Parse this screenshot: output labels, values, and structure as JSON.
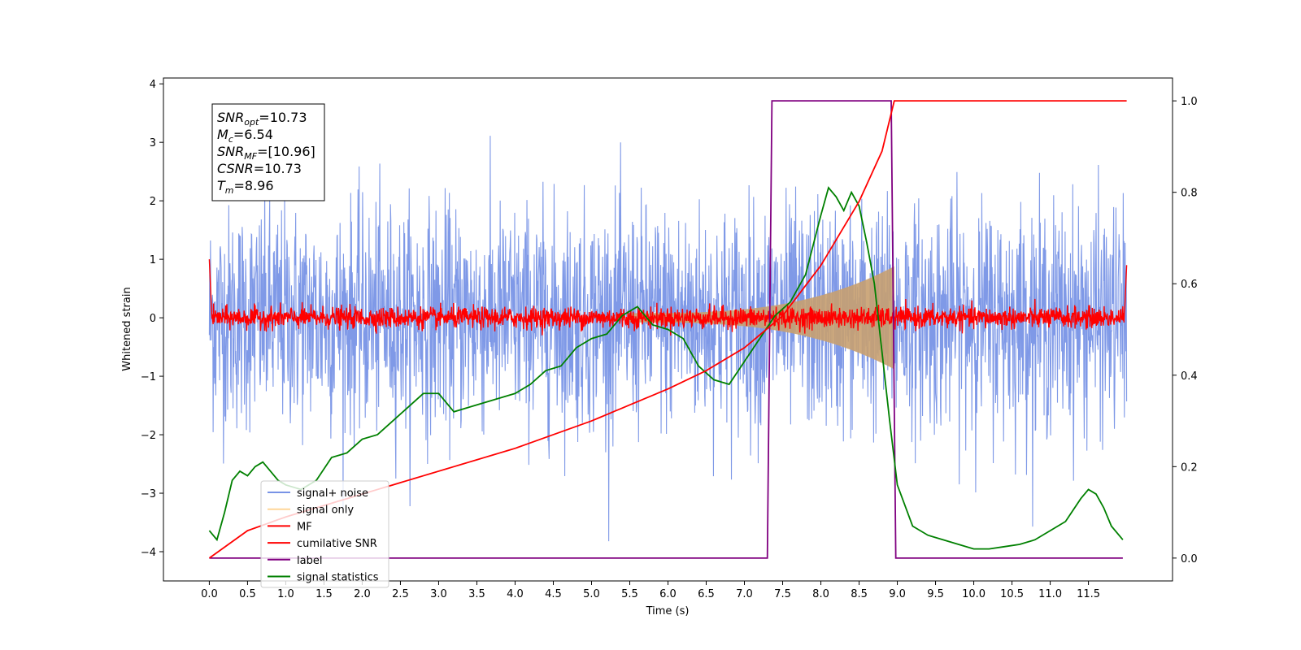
{
  "chart_data": {
    "type": "line",
    "xlabel": "Time (s)",
    "ylabel": "Whitened strain",
    "xlim": [
      -0.6,
      12.6
    ],
    "ylim": [
      -4.5,
      4.1
    ],
    "y2lim": [
      -0.05,
      1.05
    ],
    "x_ticks": [
      "0.0",
      "0.5",
      "1.0",
      "1.5",
      "2.0",
      "2.5",
      "3.0",
      "3.5",
      "4.0",
      "4.5",
      "5.0",
      "5.5",
      "6.0",
      "6.5",
      "7.0",
      "7.5",
      "8.0",
      "8.5",
      "9.0",
      "9.5",
      "10.0",
      "10.5",
      "11.0",
      "11.5"
    ],
    "y_ticks": [
      "4",
      "3",
      "2",
      "1",
      "0",
      "−1",
      "−2",
      "−3",
      "−4"
    ],
    "y2_ticks": [
      "1.0",
      "0.8",
      "0.6",
      "0.4",
      "0.2",
      "0.0"
    ],
    "annotation": {
      "lines": [
        {
          "sym": "SNR",
          "sub": "opt",
          "rest": "=10.73"
        },
        {
          "sym": "M",
          "sub": "c",
          "rest": "=6.54"
        },
        {
          "sym": "SNR",
          "sub": "MF",
          "rest": "=[10.96]"
        },
        {
          "sym": "CSNR",
          "sub": "",
          "rest": "=10.73"
        },
        {
          "sym": "T",
          "sub": "m",
          "rest": "=8.96"
        }
      ]
    },
    "legend": {
      "placement": "lower-left",
      "entries": [
        {
          "label": "signal+ noise",
          "color": "#7893e6"
        },
        {
          "label": "signal only",
          "color": "#ffd699"
        },
        {
          "label": "MF",
          "color": "#ff0000"
        },
        {
          "label": "cumilative SNR",
          "color": "#ff0000"
        },
        {
          "label": "label",
          "color": "#800080"
        },
        {
          "label": "signal statistics",
          "color": "#008000"
        }
      ]
    },
    "series": [
      {
        "name": "signal+ noise",
        "axis": "left",
        "color": "#7893e6",
        "description": "white noise band approx ±2.5 std with spikes to ±3.6 over t=0..12",
        "noise_std": 0.95,
        "t_range": [
          0,
          12
        ]
      },
      {
        "name": "signal only",
        "axis": "left",
        "color": "#c8a070",
        "chirp_start": 5.5,
        "chirp_end": 8.96,
        "peak_amplitude": 0.8
      },
      {
        "name": "MF",
        "axis": "left",
        "color": "#ff0000",
        "noise_std": 0.09,
        "t_range": [
          0,
          12
        ]
      },
      {
        "name": "cumilative SNR",
        "axis": "right",
        "color": "#ff0000",
        "x": [
          0.0,
          0.5,
          1.0,
          2.0,
          3.0,
          4.0,
          5.0,
          6.0,
          6.5,
          7.0,
          7.5,
          8.0,
          8.5,
          8.8,
          8.96,
          9.0,
          12.0
        ],
        "y": [
          0.0,
          0.06,
          0.09,
          0.14,
          0.19,
          0.24,
          0.3,
          0.37,
          0.41,
          0.46,
          0.53,
          0.64,
          0.78,
          0.89,
          1.0,
          1.0,
          1.0
        ]
      },
      {
        "name": "label",
        "axis": "right",
        "color": "#800080",
        "x": [
          0.0,
          7.3,
          7.36,
          8.92,
          8.98,
          11.95
        ],
        "y": [
          0.0,
          0.0,
          1.0,
          1.0,
          0.0,
          0.0
        ]
      },
      {
        "name": "signal statistics",
        "axis": "right",
        "color": "#008000",
        "x": [
          0.0,
          0.1,
          0.2,
          0.3,
          0.4,
          0.5,
          0.6,
          0.7,
          0.8,
          0.9,
          1.0,
          1.2,
          1.4,
          1.6,
          1.8,
          2.0,
          2.2,
          2.4,
          2.6,
          2.8,
          3.0,
          3.2,
          3.4,
          3.6,
          3.8,
          4.0,
          4.2,
          4.4,
          4.6,
          4.8,
          5.0,
          5.2,
          5.4,
          5.6,
          5.8,
          6.0,
          6.2,
          6.4,
          6.6,
          6.8,
          7.0,
          7.2,
          7.4,
          7.6,
          7.8,
          8.0,
          8.1,
          8.2,
          8.3,
          8.4,
          8.5,
          8.6,
          8.7,
          8.8,
          8.9,
          9.0,
          9.2,
          9.4,
          9.6,
          9.8,
          10.0,
          10.2,
          10.4,
          10.6,
          10.8,
          11.0,
          11.2,
          11.4,
          11.5,
          11.6,
          11.7,
          11.8,
          11.95
        ],
        "y": [
          0.06,
          0.04,
          0.1,
          0.17,
          0.19,
          0.18,
          0.2,
          0.21,
          0.19,
          0.17,
          0.16,
          0.15,
          0.17,
          0.22,
          0.23,
          0.26,
          0.27,
          0.3,
          0.33,
          0.36,
          0.36,
          0.32,
          0.33,
          0.34,
          0.35,
          0.36,
          0.38,
          0.41,
          0.42,
          0.46,
          0.48,
          0.49,
          0.53,
          0.55,
          0.51,
          0.5,
          0.48,
          0.42,
          0.39,
          0.38,
          0.43,
          0.48,
          0.53,
          0.56,
          0.62,
          0.75,
          0.81,
          0.79,
          0.76,
          0.8,
          0.77,
          0.69,
          0.6,
          0.45,
          0.3,
          0.16,
          0.07,
          0.05,
          0.04,
          0.03,
          0.02,
          0.02,
          0.025,
          0.03,
          0.04,
          0.06,
          0.08,
          0.13,
          0.15,
          0.14,
          0.11,
          0.07,
          0.04
        ]
      }
    ]
  }
}
